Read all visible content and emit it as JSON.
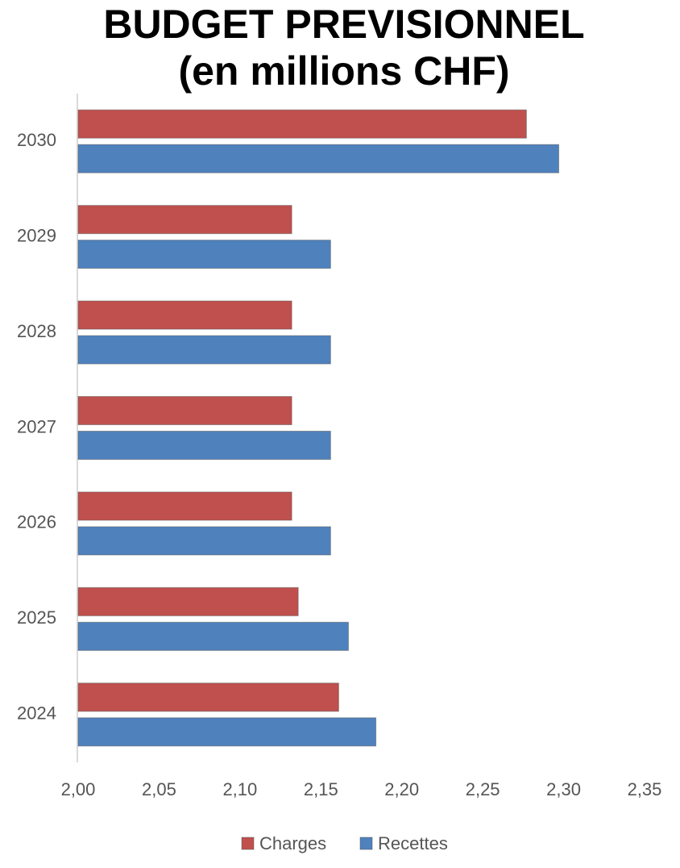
{
  "chart_data": {
    "type": "hbar",
    "title": "BUDGET PREVISIONNEL",
    "subtitle": "(en millions CHF)",
    "categories": [
      "2024",
      "2025",
      "2026",
      "2027",
      "2028",
      "2029",
      "2030"
    ],
    "series": [
      {
        "name": "Charges",
        "color": "#c0504d",
        "values": [
          2.161,
          2.136,
          2.132,
          2.132,
          2.132,
          2.132,
          2.277
        ]
      },
      {
        "name": "Recettes",
        "color": "#4f81bd",
        "values": [
          2.184,
          2.167,
          2.156,
          2.156,
          2.156,
          2.156,
          2.297
        ]
      }
    ],
    "xlim": [
      2,
      2.35
    ],
    "xticks": [
      {
        "value": 2,
        "label": "2,00"
      },
      {
        "value": 2.05,
        "label": "2,05"
      },
      {
        "value": 2.1,
        "label": "2,10"
      },
      {
        "value": 2.15,
        "label": "2,15"
      },
      {
        "value": 2.2,
        "label": "2,20"
      },
      {
        "value": 2.25,
        "label": "2,25"
      },
      {
        "value": 2.3,
        "label": "2,30"
      },
      {
        "value": 2.35,
        "label": "2,35"
      }
    ],
    "grid": false,
    "legend": "bottom"
  }
}
